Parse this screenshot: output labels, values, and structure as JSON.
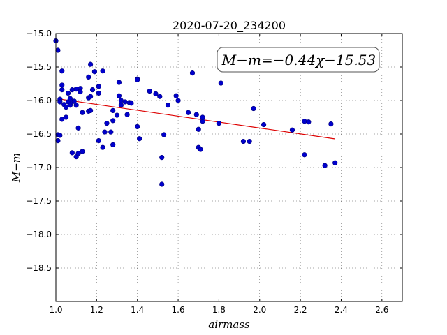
{
  "chart_data": {
    "type": "scatter",
    "title": "2020-07-20_234200",
    "xlabel": "airmass",
    "ylabel": "M−m",
    "xlim": [
      1.0,
      2.7
    ],
    "ylim": [
      -19.0,
      -15.0
    ],
    "y_inverted": true,
    "xticks": [
      1.0,
      1.2,
      1.4,
      1.6,
      1.8,
      2.0,
      2.2,
      2.4,
      2.6
    ],
    "xtick_labels": [
      "1.0",
      "1.2",
      "1.4",
      "1.6",
      "1.8",
      "2.0",
      "2.2",
      "2.4",
      "2.6"
    ],
    "yticks": [
      -15.0,
      -15.5,
      -16.0,
      -16.5,
      -17.0,
      -17.5,
      -18.0,
      -18.5
    ],
    "ytick_labels": [
      "−15.0",
      "−15.5",
      "−16.0",
      "−16.5",
      "−17.0",
      "−17.5",
      "−18.0",
      "−18.5"
    ],
    "grid": true,
    "point_color": "#0000cc",
    "fit_color": "#dd0000",
    "annotation": {
      "text": "M−m=−0.44χ−15.53",
      "placement": "top-right"
    },
    "fit_line": {
      "slope": -0.44,
      "intercept": -15.53,
      "x_range": [
        1.01,
        2.37
      ]
    },
    "points": [
      [
        1.0,
        -15.11
      ],
      [
        1.01,
        -15.25
      ],
      [
        1.01,
        -16.51
      ],
      [
        1.01,
        -16.6
      ],
      [
        1.02,
        -15.98
      ],
      [
        1.02,
        -16.02
      ],
      [
        1.02,
        -16.52
      ],
      [
        1.03,
        -15.56
      ],
      [
        1.03,
        -15.77
      ],
      [
        1.03,
        -15.84
      ],
      [
        1.03,
        -16.28
      ],
      [
        1.04,
        -16.06
      ],
      [
        1.05,
        -16.1
      ],
      [
        1.05,
        -16.25
      ],
      [
        1.06,
        -15.89
      ],
      [
        1.06,
        -16.02
      ],
      [
        1.07,
        -16.07
      ],
      [
        1.07,
        -15.97
      ],
      [
        1.08,
        -15.84
      ],
      [
        1.08,
        -16.02
      ],
      [
        1.09,
        -16.01
      ],
      [
        1.1,
        -16.07
      ],
      [
        1.1,
        -15.83
      ],
      [
        1.08,
        -16.78
      ],
      [
        1.1,
        -16.84
      ],
      [
        1.11,
        -16.79
      ],
      [
        1.11,
        -16.41
      ],
      [
        1.12,
        -15.82
      ],
      [
        1.12,
        -15.87
      ],
      [
        1.13,
        -16.18
      ],
      [
        1.13,
        -16.76
      ],
      [
        1.16,
        -15.96
      ],
      [
        1.16,
        -16.16
      ],
      [
        1.16,
        -15.65
      ],
      [
        1.17,
        -15.46
      ],
      [
        1.17,
        -16.15
      ],
      [
        1.17,
        -15.94
      ],
      [
        1.18,
        -15.84
      ],
      [
        1.19,
        -15.57
      ],
      [
        1.21,
        -15.79
      ],
      [
        1.21,
        -15.89
      ],
      [
        1.21,
        -16.6
      ],
      [
        1.23,
        -16.7
      ],
      [
        1.23,
        -15.56
      ],
      [
        1.24,
        -16.47
      ],
      [
        1.25,
        -16.34
      ],
      [
        1.27,
        -16.47
      ],
      [
        1.28,
        -16.3
      ],
      [
        1.28,
        -16.66
      ],
      [
        1.28,
        -16.15
      ],
      [
        1.3,
        -16.22
      ],
      [
        1.31,
        -15.73
      ],
      [
        1.31,
        -15.93
      ],
      [
        1.32,
        -16.0
      ],
      [
        1.32,
        -16.07
      ],
      [
        1.34,
        -16.02
      ],
      [
        1.35,
        -16.21
      ],
      [
        1.36,
        -16.03
      ],
      [
        1.37,
        -16.04
      ],
      [
        1.4,
        -15.68
      ],
      [
        1.4,
        -15.69
      ],
      [
        1.4,
        -16.39
      ],
      [
        1.41,
        -16.57
      ],
      [
        1.46,
        -15.86
      ],
      [
        1.49,
        -15.9
      ],
      [
        1.51,
        -15.94
      ],
      [
        1.52,
        -16.85
      ],
      [
        1.52,
        -17.25
      ],
      [
        1.53,
        -16.51
      ],
      [
        1.55,
        -16.07
      ],
      [
        1.59,
        -15.93
      ],
      [
        1.6,
        -16.0
      ],
      [
        1.65,
        -16.18
      ],
      [
        1.67,
        -15.59
      ],
      [
        1.69,
        -16.21
      ],
      [
        1.7,
        -16.43
      ],
      [
        1.7,
        -16.7
      ],
      [
        1.71,
        -16.73
      ],
      [
        1.72,
        -16.31
      ],
      [
        1.72,
        -16.25
      ],
      [
        1.8,
        -16.34
      ],
      [
        1.81,
        -15.74
      ],
      [
        1.92,
        -16.61
      ],
      [
        1.95,
        -16.61
      ],
      [
        1.97,
        -16.12
      ],
      [
        2.02,
        -16.36
      ],
      [
        2.16,
        -16.44
      ],
      [
        2.22,
        -16.81
      ],
      [
        2.22,
        -16.31
      ],
      [
        2.24,
        -16.32
      ],
      [
        2.32,
        -16.97
      ],
      [
        2.35,
        -16.35
      ],
      [
        2.37,
        -16.93
      ]
    ]
  }
}
